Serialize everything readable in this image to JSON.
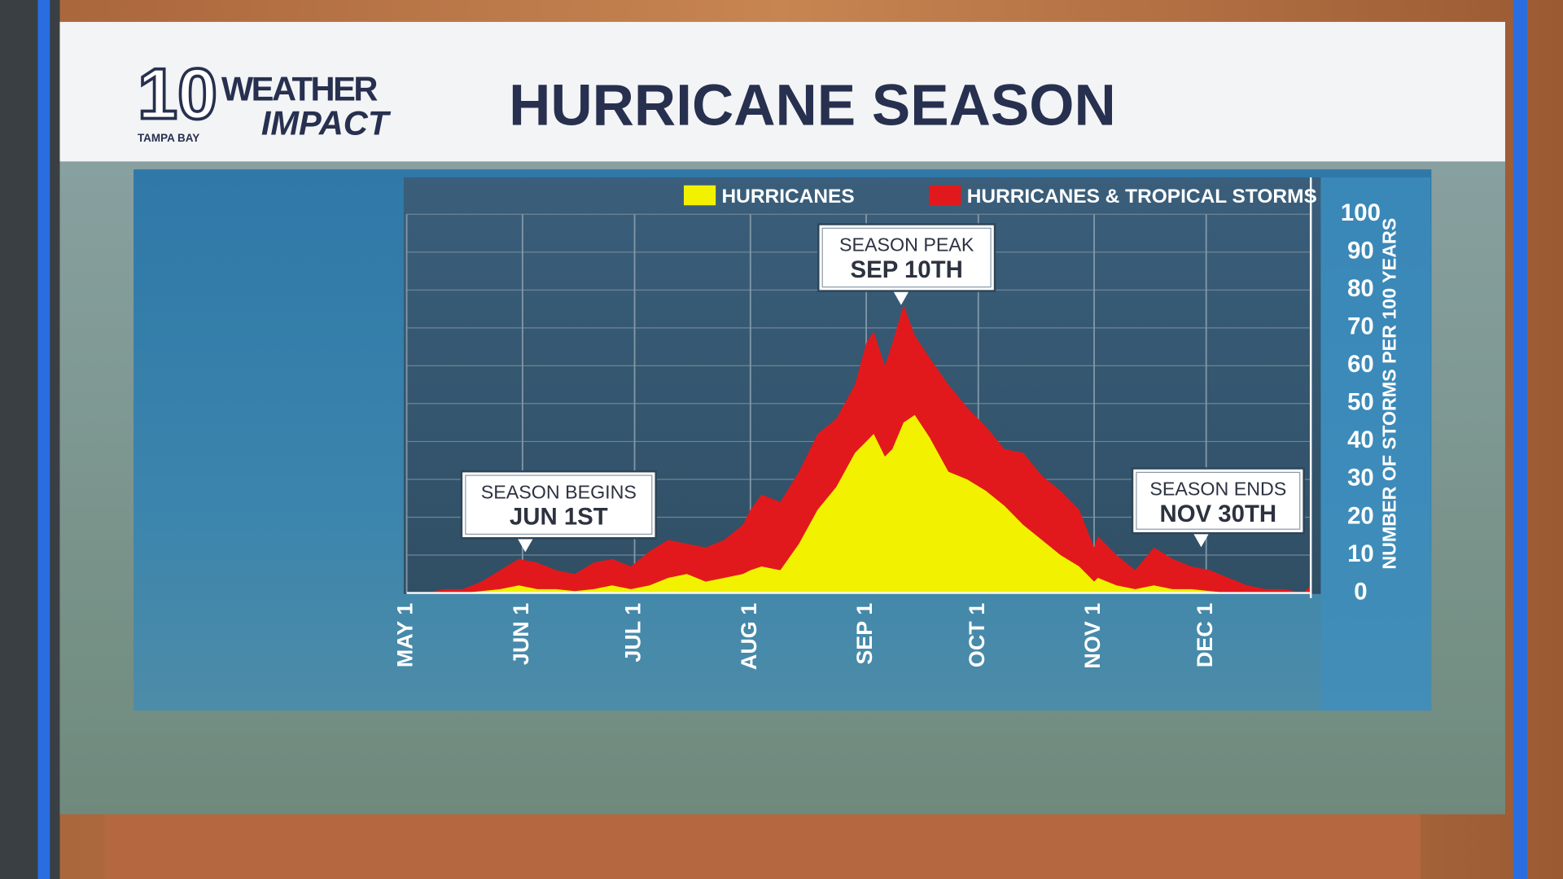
{
  "logo": {
    "number": "10",
    "line1": "WEATHER",
    "line2": "IMPACT",
    "station": "TAMPA BAY"
  },
  "chart_data": {
    "type": "area",
    "title": "HURRICANE SEASON",
    "y_label": "NUMBER OF STORMS PER 100 YEARS",
    "x": [
      0,
      5,
      10,
      15,
      20,
      25,
      30,
      35,
      40,
      45,
      50,
      55,
      60,
      65,
      70,
      75,
      80,
      85,
      90,
      92,
      95,
      100,
      105,
      110,
      115,
      120,
      123,
      125,
      128,
      130,
      133,
      136,
      140,
      145,
      150,
      155,
      160,
      165,
      170,
      175,
      180,
      184,
      185,
      190,
      195,
      200,
      205,
      210,
      215,
      220,
      225,
      230,
      235,
      240,
      242
    ],
    "series": [
      {
        "name": "HURRICANES",
        "color": "#f2f200",
        "values": [
          0,
          0,
          0,
          0,
          0.5,
          1,
          2,
          1,
          1,
          0.5,
          1,
          2,
          1,
          2,
          4,
          5,
          3,
          4,
          5,
          6,
          7,
          6,
          13,
          22,
          28,
          37,
          40,
          42,
          36,
          38,
          45,
          47,
          41,
          32,
          30,
          27,
          23,
          18,
          14,
          10,
          7,
          3,
          4,
          2,
          1,
          2,
          1,
          1,
          0.5,
          0,
          0,
          0,
          0,
          0,
          0
        ]
      },
      {
        "name": "HURRICANES & TROPICAL STORMS",
        "color": "#e2191c",
        "values": [
          0,
          0,
          1,
          1,
          3,
          6,
          9,
          8,
          6,
          5,
          8,
          9,
          7,
          11,
          14,
          13,
          12,
          14,
          18,
          22,
          26,
          24,
          32,
          42,
          46,
          55,
          66,
          69,
          60,
          66,
          76,
          68,
          62,
          55,
          49,
          44,
          38,
          37,
          31,
          27,
          22,
          12,
          15,
          10,
          6,
          12,
          9,
          7,
          6,
          4,
          2,
          1,
          1,
          0,
          2
        ]
      }
    ],
    "xlim": [
      0,
      242
    ],
    "xticks": [
      {
        "value": 0,
        "label": "MAY 1"
      },
      {
        "value": 31,
        "label": "JUN 1"
      },
      {
        "value": 61,
        "label": "JUL 1"
      },
      {
        "value": 92,
        "label": "AUG 1"
      },
      {
        "value": 123,
        "label": "SEP 1"
      },
      {
        "value": 153,
        "label": "OCT 1"
      },
      {
        "value": 184,
        "label": "NOV 1"
      },
      {
        "value": 214,
        "label": "DEC 1"
      }
    ],
    "ylim": [
      0,
      100
    ],
    "yticks": [
      0,
      10,
      20,
      30,
      40,
      50,
      60,
      70,
      80,
      90,
      100
    ],
    "grid": true,
    "annotations": [
      {
        "label": "SEASON BEGINS",
        "date": "JUN 1ST"
      },
      {
        "label": "SEASON PEAK",
        "date": "SEP 10TH"
      },
      {
        "label": "SEASON ENDS",
        "date": "NOV 30TH"
      }
    ]
  }
}
